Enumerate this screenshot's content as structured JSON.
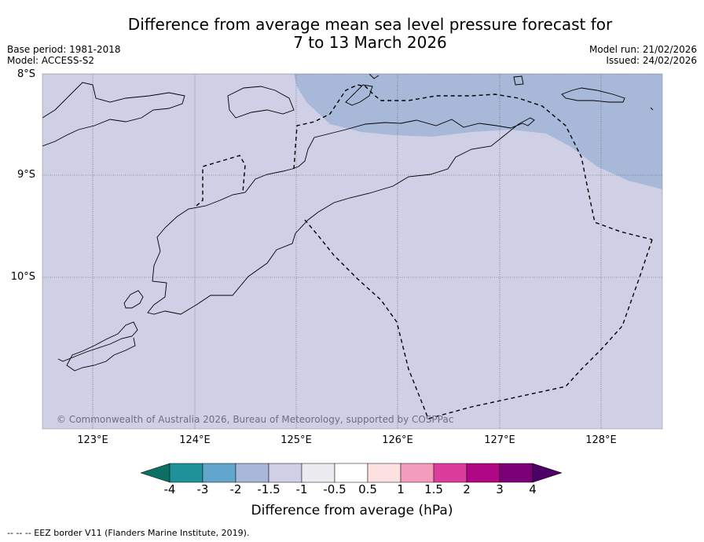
{
  "title": {
    "line1": "Difference from average mean sea level pressure forecast for",
    "line2": "7 to 13 March 2026"
  },
  "meta": {
    "base_period": "Base period: 1981-2018",
    "model": "Model: ACCESS-S2",
    "model_run": "Model run: 21/02/2026",
    "issued": "Issued: 24/02/2026"
  },
  "map": {
    "lat_labels": [
      "8°S",
      "9°S",
      "10°S"
    ],
    "lon_labels": [
      "123°E",
      "124°E",
      "125°E",
      "126°E",
      "127°E",
      "128°E"
    ],
    "credit": "© Commonwealth of Australia 2026, Bureau of Meteorology, supported by COSPPac",
    "colors": {
      "band_minus1p5_to_minus1": "#cfcfe5",
      "band_minus2_to_minus1p5": "#a7b8d8",
      "coastline": "#000000",
      "eez_border": "#000000"
    }
  },
  "colorbar": {
    "title": "Difference from average (hPa)",
    "tick_labels": [
      "-4",
      "-3",
      "-2",
      "-1.5",
      "-1",
      "-0.5",
      "0.5",
      "1",
      "1.5",
      "2",
      "3",
      "4"
    ],
    "colors": [
      "#0b6f64",
      "#1f9198",
      "#62a6cd",
      "#a7b8d8",
      "#cfcfe5",
      "#ececf0",
      "#ffffff",
      "#fde0e0",
      "#f49cbd",
      "#dc3d9d",
      "#b00784",
      "#7b0077",
      "#4b0066"
    ]
  },
  "legend_note": "--  --  -- EEZ border V11 (Flanders Marine Institute, 2019)."
}
